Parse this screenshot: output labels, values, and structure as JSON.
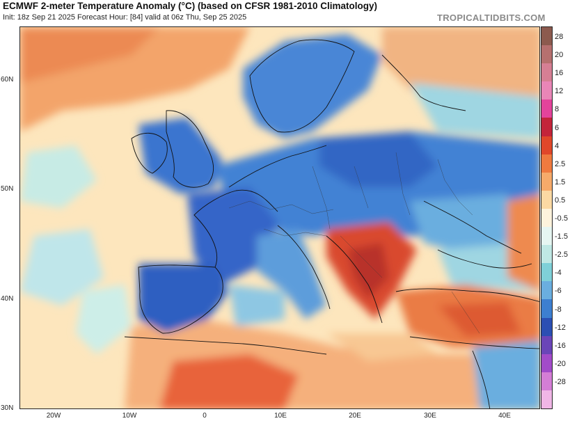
{
  "header": {
    "title": "ECMWF 2-meter Temperature Anomaly (°C) (based on CFSR 1981-2010 Climatology)",
    "subtitle": "Init: 18z Sep 21 2025   Forecast Hour: [84]   valid at 06z Thu, Sep 25 2025",
    "brand": "TROPICALTIDBITS.COM"
  },
  "axes": {
    "lat_labels": [
      "60N",
      "50N",
      "40N",
      "30N"
    ],
    "lon_labels": [
      "20W",
      "10W",
      "0",
      "10E",
      "20E",
      "30E",
      "40E"
    ]
  },
  "colorbar": {
    "labels": [
      "28",
      "20",
      "16",
      "12",
      "8",
      "6",
      "4",
      "2.5",
      "1.5",
      "0.5",
      "-0.5",
      "-1.5",
      "-2.5",
      "-4",
      "-6",
      "-8",
      "-12",
      "-16",
      "-20",
      "-28"
    ],
    "colors": [
      "#8c5a4e",
      "#b6706f",
      "#d67f94",
      "#e986b7",
      "#e3439b",
      "#c3243a",
      "#e0472a",
      "#ef7a3f",
      "#f6aa6a",
      "#fbd9a3",
      "#fdf3dc",
      "#e6f6f2",
      "#bfe8e4",
      "#7fd0d8",
      "#6aaedf",
      "#3d7fd0",
      "#2b4fb3",
      "#6a45b8",
      "#a24bc9",
      "#d47ed6",
      "#f0b6e6"
    ]
  },
  "regions": {
    "iberia": "#3f6fcc",
    "france": "#3a6ccd",
    "central_europe": "#3f7bd3",
    "balkans": "#d9492e",
    "turkey": "#ea7c45",
    "north_africa": "#f1a066",
    "atlantic": "#fdeec9",
    "scandinavia": "#4a86d6",
    "east_europe": "#4f8fd8"
  }
}
